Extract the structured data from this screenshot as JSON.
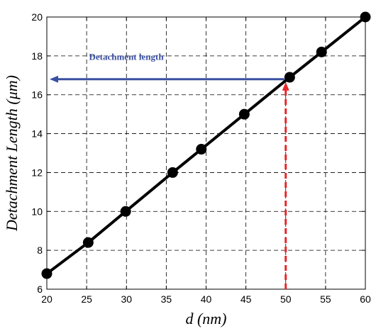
{
  "chart_data": {
    "type": "line",
    "xlabel": "d (nm)",
    "ylabel": "Detachment Length (μm)",
    "xlim": [
      20,
      60
    ],
    "ylim": [
      6,
      20
    ],
    "xticks": [
      "20",
      "25",
      "30",
      "35",
      "40",
      "45",
      "50",
      "55",
      "60"
    ],
    "yticks": [
      "6",
      "8",
      "10",
      "12",
      "14",
      "16",
      "18",
      "20"
    ],
    "grid": true,
    "series": [
      {
        "color": "#000000",
        "marker": "circle",
        "x": [
          20,
          25.2,
          29.9,
          35.8,
          39.4,
          44.8,
          50.5,
          54.5,
          60
        ],
        "y": [
          6.8,
          8.4,
          10.0,
          12.0,
          13.2,
          15.0,
          16.9,
          18.2,
          20.0
        ]
      }
    ],
    "annotation": {
      "text": "Detachment length",
      "text_color": "#3a4fa0",
      "horizontal_arrow_color": "#3a4fa0",
      "vertical_arrow_color": "#e8262a",
      "x_value": 50,
      "y_value": 16.8
    }
  }
}
